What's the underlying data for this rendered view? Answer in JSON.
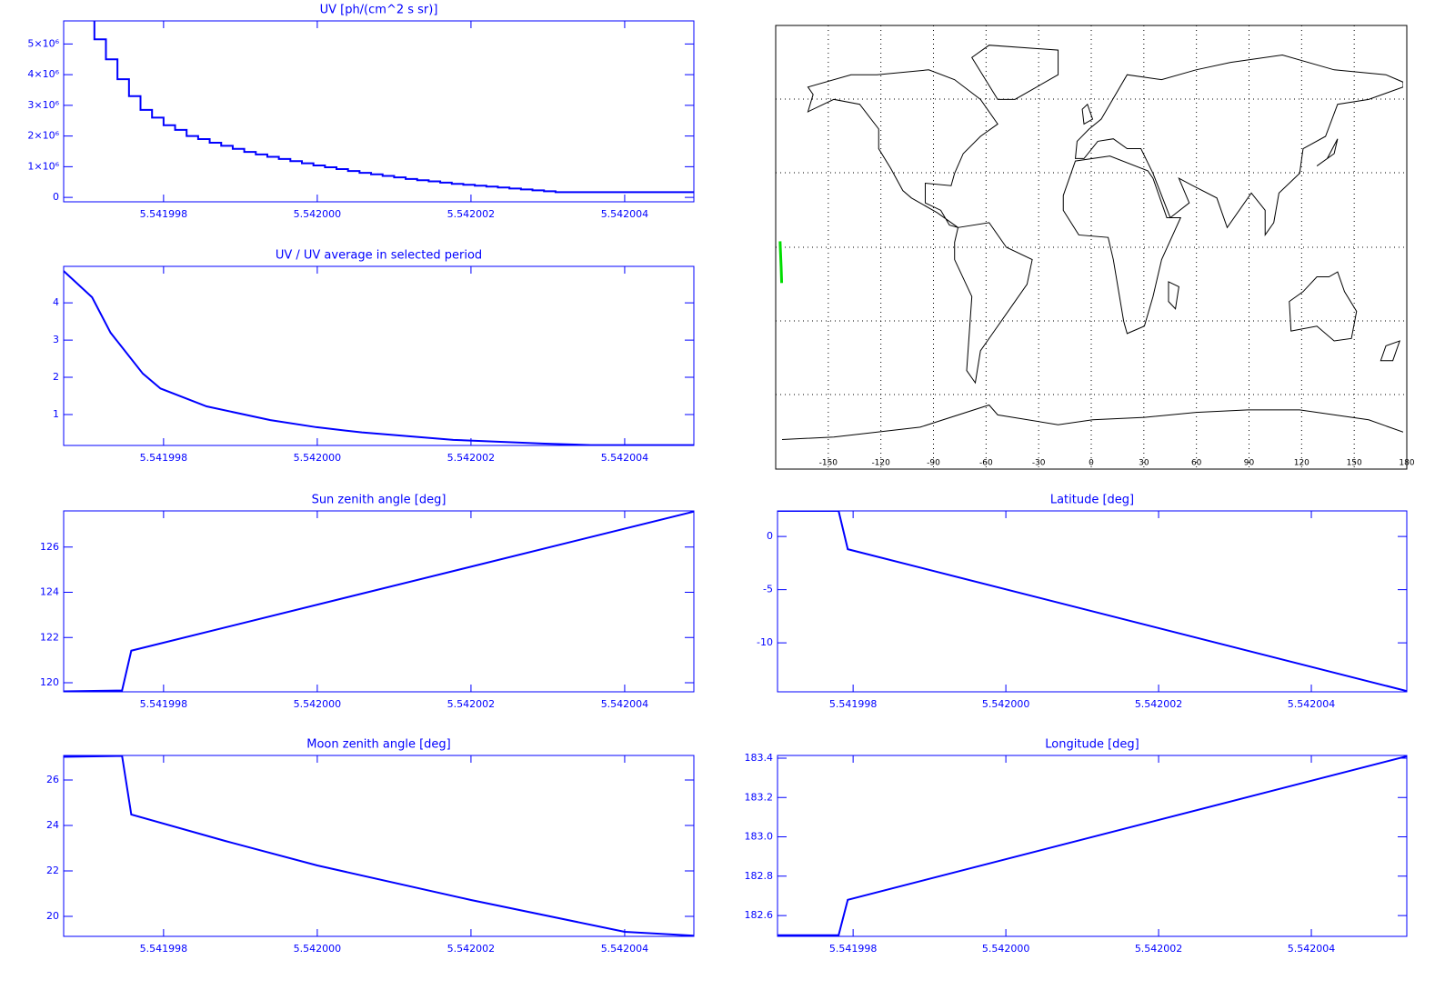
{
  "chart_data": [
    {
      "type": "step",
      "title": "UV [ph/(cm^2 s sr)]",
      "color": "#0000ff",
      "xlim": [
        5.5419967,
        5.5420049
      ],
      "xticks": [
        5.541998,
        {
          "value": 5.542,
          "label": "5.542000"
        },
        5.542002,
        5.542004
      ],
      "ylim": [
        -145000,
        5750000
      ],
      "yticks": [
        {
          "value": 0,
          "label": "0"
        },
        {
          "value": 1000000,
          "label": "1×10⁶"
        },
        {
          "value": 2000000,
          "label": "2×10⁶"
        },
        {
          "value": 3000000,
          "label": "3×10⁶"
        },
        {
          "value": 4000000,
          "label": "4×10⁶"
        },
        {
          "value": 5000000,
          "label": "5×10⁶"
        }
      ],
      "x": [
        5.5419971,
        5.54199725,
        5.5419974,
        5.54199755,
        5.5419977,
        5.54199785,
        5.541998,
        5.54199815,
        5.5419983,
        5.54199845,
        5.5419986,
        5.54199875,
        5.5419989,
        5.54199905,
        5.5419992,
        5.54199935,
        5.5419995,
        5.54199965,
        5.5419998,
        5.54199995,
        5.5420001,
        5.54200025,
        5.5420004,
        5.54200055,
        5.5420007,
        5.54200085,
        5.542001,
        5.54200115,
        5.5420013,
        5.54200145,
        5.5420016,
        5.54200175,
        5.5420019,
        5.54200205,
        5.5420022,
        5.54200235,
        5.5420025,
        5.54200265,
        5.5420028,
        5.54200295,
        5.5420031
      ],
      "values": [
        5150000,
        4500000,
        3850000,
        3300000,
        2850000,
        2600000,
        2350000,
        2200000,
        2000000,
        1900000,
        1780000,
        1680000,
        1580000,
        1480000,
        1400000,
        1320000,
        1250000,
        1180000,
        1110000,
        1040000,
        980000,
        920000,
        860000,
        800000,
        750000,
        700000,
        650000,
        600000,
        560000,
        520000,
        480000,
        440000,
        410000,
        380000,
        350000,
        320000,
        290000,
        260000,
        230000,
        200000,
        170000
      ]
    },
    {
      "type": "map",
      "xlim": [
        -180,
        180
      ],
      "ylim": [
        -90,
        90
      ],
      "xticks": [
        -150,
        -120,
        -90,
        -60,
        -30,
        0,
        30,
        60,
        90,
        120,
        150,
        180
      ],
      "track": {
        "color": "#00dd00",
        "lon": [
          -177.5,
          -177.3,
          -176.9,
          -176.6
        ],
        "lat": [
          2.4,
          -1.2,
          -8,
          -14.5
        ]
      }
    },
    {
      "type": "line",
      "title": "UV / UV average in selected period",
      "color": "#0000ff",
      "xlim": [
        5.5419967,
        5.5420049
      ],
      "xticks": [
        5.541998,
        {
          "value": 5.542,
          "label": "5.542000"
        },
        5.542002,
        5.542004
      ],
      "ylim": [
        0.17,
        4.98
      ],
      "yticks": [
        1,
        2,
        3,
        4
      ],
      "x": [
        5.54199665,
        5.54199707,
        5.54199731,
        5.54199773,
        5.54199796,
        5.54199856,
        5.54199939,
        5.54199999,
        5.54200058,
        5.54200177,
        5.54200296,
        5.54200356,
        5.5420049
      ],
      "values": [
        4.95,
        4.15,
        3.2,
        2.1,
        1.7,
        1.22,
        0.85,
        0.66,
        0.52,
        0.32,
        0.22,
        0.18,
        0.18
      ]
    },
    {
      "type": "line",
      "title": "Sun zenith angle [deg]",
      "color": "#0000ff",
      "xlim": [
        5.5419967,
        5.5420049
      ],
      "xticks": [
        5.541998,
        {
          "value": 5.542,
          "label": "5.542000"
        },
        5.542002,
        5.542004
      ],
      "ylim": [
        119.6,
        127.6
      ],
      "yticks": [
        120,
        122,
        124,
        126
      ],
      "x": [
        5.54199665,
        5.54199746,
        5.54199758,
        5.5420049
      ],
      "values": [
        119.62,
        119.66,
        121.42,
        127.57
      ]
    },
    {
      "type": "line",
      "title": "Latitude [deg]",
      "color": "#0000ff",
      "xlim": [
        5.54199701,
        5.54200525
      ],
      "xticks": [
        5.541998,
        {
          "value": 5.542,
          "label": "5.542000"
        },
        5.542002,
        5.542004
      ],
      "ylim": [
        -14.6,
        2.4
      ],
      "yticks": [
        0,
        -5,
        -10
      ],
      "x": [
        5.54199701,
        5.54199781,
        5.54199793,
        5.54200525
      ],
      "values": [
        2.4,
        2.4,
        -1.2,
        -14.53
      ]
    },
    {
      "type": "line",
      "title": "Moon zenith angle [deg]",
      "color": "#0000ff",
      "xlim": [
        5.5419967,
        5.5420049
      ],
      "xticks": [
        5.541998,
        {
          "value": 5.542,
          "label": "5.542000"
        },
        5.542002,
        5.542004
      ],
      "ylim": [
        19.12,
        27.08
      ],
      "yticks": [
        20,
        22,
        24,
        26
      ],
      "x": [
        5.54199665,
        5.54199746,
        5.54199758,
        5.5419988,
        5.542,
        5.542002,
        5.542004,
        5.5420049
      ],
      "values": [
        27.02,
        27.06,
        24.48,
        23.32,
        22.24,
        20.72,
        19.32,
        19.15
      ]
    },
    {
      "type": "line",
      "title": "Longitude [deg]",
      "color": "#0000ff",
      "xlim": [
        5.54199701,
        5.54200525
      ],
      "xticks": [
        5.541998,
        {
          "value": 5.542,
          "label": "5.542000"
        },
        5.542002,
        5.542004
      ],
      "ylim": [
        182.494,
        183.414
      ],
      "yticks": [
        182.6,
        182.8,
        {
          "value": 183,
          "label": "183.0"
        },
        183.2,
        183.4
      ],
      "x": [
        5.54199701,
        5.54199781,
        5.54199793,
        5.54200525
      ],
      "values": [
        182.5,
        182.5,
        182.68,
        183.41
      ]
    }
  ]
}
